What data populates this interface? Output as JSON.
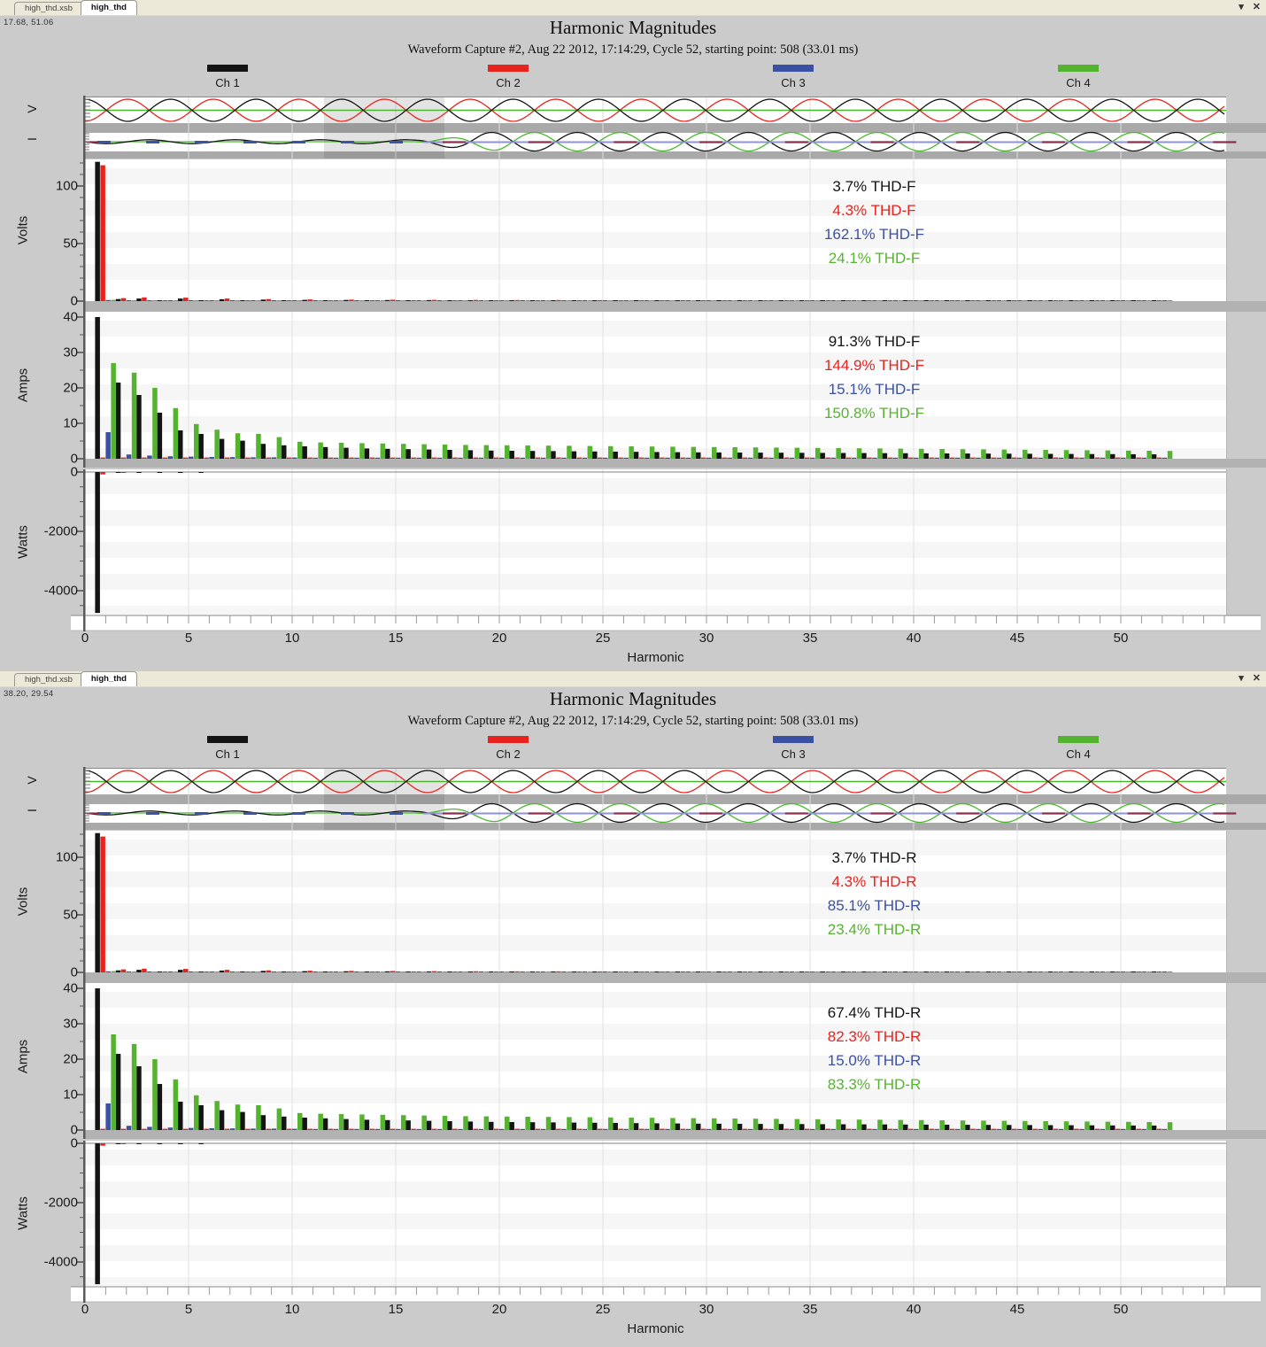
{
  "window": {
    "tabs": [
      "high_thd.xsb",
      "high_thd"
    ],
    "controls": {
      "menu": "▾",
      "close": "✕"
    }
  },
  "shared": {
    "title": "Harmonic Magnitudes",
    "subtitle": "Waveform Capture #2, Aug 22 2012, 17:14:29, Cycle 52,  starting point: 508  (33.01 ms)",
    "legend": [
      {
        "label": "Ch 1",
        "color": "#141414"
      },
      {
        "label": "Ch 2",
        "color": "#e8231d"
      },
      {
        "label": "Ch 3",
        "color": "#3a50a2"
      },
      {
        "label": "Ch 4",
        "color": "#55b42f"
      }
    ],
    "strip_labels": [
      "V",
      "I"
    ],
    "xlabel": "Harmonic",
    "x_ticks": [
      0,
      5,
      10,
      15,
      20,
      25,
      30,
      35,
      40,
      45,
      50
    ]
  },
  "panels": [
    {
      "coords": "17.68, 51.06",
      "volts_thd": [
        "3.7% THD-F",
        "4.3% THD-F",
        "162.1% THD-F",
        "24.1% THD-F"
      ],
      "amps_thd": [
        "91.3% THD-F",
        "144.9% THD-F",
        "15.1% THD-F",
        "150.8% THD-F"
      ]
    },
    {
      "coords": "38.20, 29.54",
      "volts_thd": [
        "3.7% THD-R",
        "4.3% THD-R",
        "85.1% THD-R",
        "23.4% THD-R"
      ],
      "amps_thd": [
        "67.4% THD-R",
        "82.3% THD-R",
        "15.0% THD-R",
        "83.3% THD-R"
      ]
    }
  ],
  "chart_data": [
    {
      "id": "volts",
      "type": "bar",
      "ylabel": "Volts",
      "xlabel": "Harmonic",
      "x_range": [
        1,
        52
      ],
      "ylim": [
        0,
        123
      ],
      "yticks": [
        100,
        50,
        0
      ],
      "grid": "vertical every 5 harmonics",
      "legend_position": "top",
      "series": [
        {
          "name": "Ch 1",
          "color": "#141414",
          "values": [
            121,
            1.8,
            2.2,
            0.6,
            2.2,
            0.5,
            1.6,
            0.5,
            1.3,
            0.4,
            1.1,
            0.4,
            1,
            0.4,
            0.9,
            0.4,
            0.85,
            0.35,
            0.8,
            0.35,
            0.75,
            0.35,
            0.7,
            0.35,
            0.7,
            0.3,
            0.65,
            0.3,
            0.65,
            0.3,
            0.6,
            0.3,
            0.6,
            0.3,
            0.55,
            0.3,
            0.55,
            0.3,
            0.5,
            0.3,
            0.5,
            0.3,
            0.5,
            0.3,
            0.45,
            0.3,
            0.45,
            0.3,
            0.45,
            0.3,
            0.4,
            0.3
          ]
        },
        {
          "name": "Ch 2",
          "color": "#e8231d",
          "values": [
            118,
            2.6,
            3.2,
            0.7,
            3,
            0.6,
            2.2,
            0.6,
            1.8,
            0.5,
            1.5,
            0.5,
            1.3,
            0.5,
            1.2,
            0.45,
            1.1,
            0.45,
            1,
            0.45,
            0.95,
            0.4,
            0.9,
            0.4,
            0.85,
            0.4,
            0.8,
            0.4,
            0.75,
            0.4,
            0.7,
            0.35,
            0.7,
            0.35,
            0.65,
            0.35,
            0.65,
            0.35,
            0.6,
            0.35,
            0.6,
            0.35,
            0.55,
            0.35,
            0.55,
            0.3,
            0.5,
            0.3,
            0.5,
            0.3,
            0.5,
            0.3
          ]
        },
        {
          "name": "Ch 3",
          "color": "#3a50a2",
          "values": [
            0.9,
            0.6,
            0.55,
            0.5,
            0.5,
            0.45,
            0.45,
            0.4,
            0.4,
            0.4,
            0.35,
            0.35,
            0.35,
            0.35,
            0.35,
            0.35,
            0.35,
            0.35,
            0.35,
            0.35,
            0.35,
            0.35,
            0.35,
            0.35,
            0.35,
            0.35,
            0.35,
            0.35,
            0.35,
            0.35,
            0.35,
            0.35,
            0.35,
            0.35,
            0.35,
            0.35,
            0.35,
            0.35,
            0.35,
            0.35,
            0.35,
            0.35,
            0.35,
            0.35,
            0.35,
            0.35,
            0.35,
            0.35,
            0.35,
            0.35,
            0.35,
            0.35
          ]
        },
        {
          "name": "Ch 4",
          "color": "#55b42f",
          "values": [
            1.1,
            0.4,
            0.35,
            0.3,
            0.3,
            0.3,
            0.3,
            0.3,
            0.3,
            0.3,
            0.3,
            0.3,
            0.3,
            0.3,
            0.3,
            0.3,
            0.3,
            0.3,
            0.3,
            0.3,
            0.3,
            0.3,
            0.3,
            0.3,
            0.3,
            0.3,
            0.3,
            0.3,
            0.3,
            0.3,
            0.3,
            0.3,
            0.3,
            0.3,
            0.3,
            0.3,
            0.3,
            0.3,
            0.3,
            0.3,
            0.3,
            0.3,
            0.3,
            0.3,
            0.3,
            0.3,
            0.3,
            0.3,
            0.3,
            0.3,
            0.3,
            0.3
          ]
        }
      ],
      "annotations": {
        "panel_0": [
          "3.7% THD-F",
          "4.3% THD-F",
          "162.1% THD-F",
          "24.1% THD-F"
        ],
        "panel_1": [
          "3.7% THD-R",
          "4.3% THD-R",
          "85.1% THD-R",
          "23.4% THD-R"
        ]
      }
    },
    {
      "id": "amps",
      "type": "bar",
      "ylabel": "Amps",
      "xlabel": "Harmonic",
      "x_range": [
        1,
        52
      ],
      "ylim": [
        0,
        41.5
      ],
      "yticks": [
        40,
        30,
        20,
        10,
        0
      ],
      "grid": "vertical every 5 harmonics",
      "series": [
        {
          "name": "Ch 1",
          "color": "#141414",
          "values": [
            40,
            21.5,
            18,
            13,
            8,
            7,
            5.6,
            5.1,
            4.2,
            3.8,
            3.5,
            3.3,
            3.1,
            2.9,
            2.8,
            2.7,
            2.6,
            2.5,
            2.4,
            2.3,
            2.25,
            2.2,
            2.15,
            2.1,
            2.05,
            2,
            1.95,
            1.9,
            1.85,
            1.8,
            1.78,
            1.75,
            1.72,
            1.7,
            1.68,
            1.65,
            1.62,
            1.6,
            1.58,
            1.55,
            1.52,
            1.5,
            1.48,
            1.45,
            1.42,
            1.4,
            1.38,
            1.35,
            1.32,
            1.3,
            1.28,
            1.25
          ]
        },
        {
          "name": "Ch 2",
          "color": "#e8231d",
          "values": [
            0.35,
            0.35,
            0.35,
            0.35,
            0.35,
            0.35,
            0.35,
            0.35,
            0.35,
            0.35,
            0.35,
            0.35,
            0.35,
            0.35,
            0.35,
            0.35,
            0.35,
            0.35,
            0.35,
            0.35,
            0.35,
            0.35,
            0.35,
            0.35,
            0.35,
            0.35,
            0.35,
            0.35,
            0.35,
            0.35,
            0.35,
            0.35,
            0.35,
            0.35,
            0.35,
            0.35,
            0.35,
            0.35,
            0.35,
            0.35,
            0.35,
            0.35,
            0.35,
            0.35,
            0.35,
            0.35,
            0.35,
            0.35,
            0.35,
            0.35,
            0.35,
            0.35
          ]
        },
        {
          "name": "Ch 3",
          "color": "#3a50a2",
          "values": [
            7.5,
            1.2,
            0.9,
            0.7,
            0.6,
            0.5,
            0.45,
            0.4,
            0.4,
            0.35,
            0.3,
            0.3,
            0.3,
            0.3,
            0.3,
            0.3,
            0.3,
            0.3,
            0.3,
            0.3,
            0.3,
            0.3,
            0.3,
            0.3,
            0.3,
            0.3,
            0.3,
            0.3,
            0.3,
            0.3,
            0.3,
            0.3,
            0.3,
            0.3,
            0.3,
            0.3,
            0.3,
            0.3,
            0.3,
            0.3,
            0.3,
            0.3,
            0.3,
            0.3,
            0.3,
            0.3,
            0.3,
            0.3,
            0.3,
            0.3,
            0.3,
            0.3
          ]
        },
        {
          "name": "Ch 4",
          "color": "#55b42f",
          "values": [
            27,
            24.3,
            20,
            14.3,
            9.8,
            8.2,
            7.2,
            7,
            6.1,
            4.8,
            4.6,
            4.5,
            4.4,
            4.3,
            4.2,
            4.1,
            4,
            3.9,
            3.85,
            3.8,
            3.75,
            3.7,
            3.65,
            3.6,
            3.55,
            3.5,
            3.45,
            3.4,
            3.35,
            3.3,
            3.25,
            3.2,
            3.15,
            3.1,
            3.05,
            3,
            2.95,
            2.9,
            2.85,
            2.8,
            2.75,
            2.7,
            2.65,
            2.6,
            2.55,
            2.5,
            2.45,
            2.4,
            2.35,
            2.3,
            2.25,
            2.2
          ]
        }
      ],
      "annotations": {
        "panel_0": [
          "91.3% THD-F",
          "144.9% THD-F",
          "15.1% THD-F",
          "150.8% THD-F"
        ],
        "panel_1": [
          "67.4% THD-R",
          "82.3% THD-R",
          "15.0% THD-R",
          "83.3% THD-R"
        ]
      }
    },
    {
      "id": "watts",
      "type": "bar",
      "ylabel": "Watts",
      "xlabel": "Harmonic",
      "x_range": [
        1,
        52
      ],
      "ylim": [
        -4870,
        0
      ],
      "yticks": [
        0,
        -2000,
        -4000
      ],
      "grid": "vertical every 5 harmonics",
      "series": [
        {
          "name": "Ch 1",
          "color": "#141414",
          "values": [
            -4750,
            -30,
            -28,
            -25,
            -22,
            -8,
            0,
            0,
            0,
            0,
            0,
            0,
            0,
            0,
            0,
            0,
            0,
            0,
            0,
            0,
            0,
            0,
            0,
            0,
            0,
            0,
            0,
            0,
            0,
            0,
            0,
            0,
            0,
            0,
            0,
            0,
            0,
            0,
            0,
            0,
            0,
            0,
            0,
            0,
            0,
            0,
            0,
            0,
            0,
            0,
            0,
            0
          ]
        },
        {
          "name": "Ch 2",
          "color": "#e8231d",
          "values": [
            -80,
            -12,
            0,
            0,
            0,
            0,
            0,
            0,
            0,
            0,
            0,
            0,
            0,
            0,
            0,
            0,
            0,
            0,
            0,
            0,
            0,
            0,
            0,
            0,
            0,
            0,
            0,
            0,
            0,
            0,
            0,
            0,
            0,
            0,
            0,
            0,
            0,
            0,
            0,
            0,
            0,
            0,
            0,
            0,
            0,
            0,
            0,
            0,
            0,
            0,
            0,
            0
          ]
        },
        {
          "name": "Ch 3",
          "color": "#3a50a2",
          "values": [
            0,
            0,
            0,
            0,
            0,
            0,
            0,
            0,
            0,
            0,
            0,
            0,
            0,
            0,
            0,
            0,
            0,
            0,
            0,
            0,
            0,
            0,
            0,
            0,
            0,
            0,
            0,
            0,
            0,
            0,
            0,
            0,
            0,
            0,
            0,
            0,
            0,
            0,
            0,
            0,
            0,
            0,
            0,
            0,
            0,
            0,
            0,
            0,
            0,
            0,
            0,
            0
          ]
        },
        {
          "name": "Ch 4",
          "color": "#55b42f",
          "values": [
            0,
            0,
            0,
            0,
            0,
            0,
            0,
            0,
            0,
            0,
            0,
            0,
            0,
            0,
            0,
            0,
            0,
            0,
            0,
            0,
            0,
            0,
            0,
            0,
            0,
            0,
            0,
            0,
            0,
            0,
            0,
            0,
            0,
            0,
            0,
            0,
            0,
            0,
            0,
            0,
            0,
            0,
            0,
            0,
            0,
            0,
            0,
            0,
            0,
            0,
            0,
            0
          ]
        }
      ]
    }
  ]
}
